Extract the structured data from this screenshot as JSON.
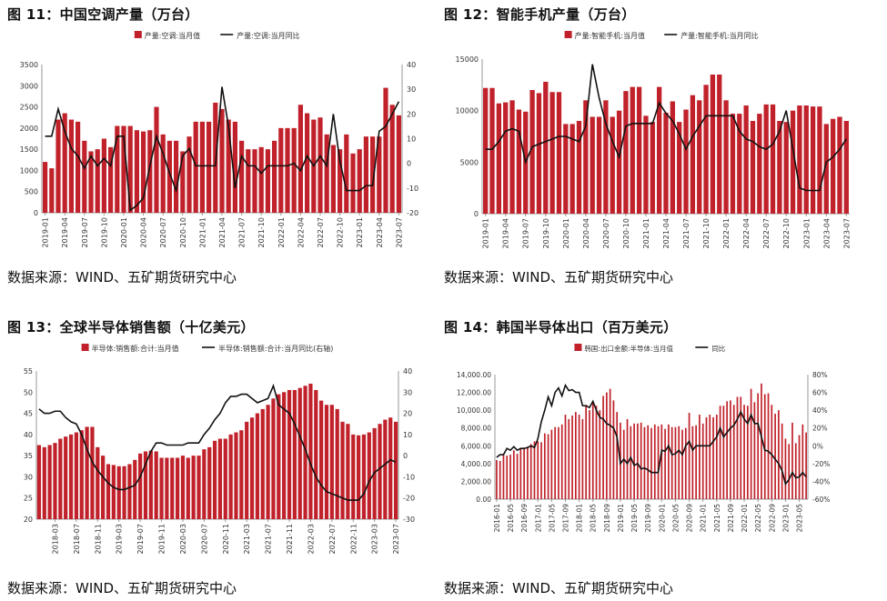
{
  "panels": [
    {
      "title": "图 11：中国空调产量（万台）",
      "source": "数据来源：WIND、五矿期货研究中心"
    },
    {
      "title": "图 12：智能手机产量（万台）",
      "source": "数据来源：WIND、五矿期货研究中心"
    },
    {
      "title": "图 13：全球半导体销售额（十亿美元）",
      "source": "数据来源：WIND、五矿期货研究中心"
    },
    {
      "title": "图 14：韩国半导体出口（百万美元）",
      "source": "数据来源：WIND、五矿期货研究中心"
    }
  ],
  "colors": {
    "bar": "#C0212A",
    "line": "#111111",
    "axis": "#999999"
  },
  "chart_data": [
    {
      "type": "bar",
      "title": "图 11：中国空调产量（万台）",
      "categories": [
        "2019-01",
        "2019-02",
        "2019-03",
        "2019-04",
        "2019-05",
        "2019-06",
        "2019-07",
        "2019-08",
        "2019-09",
        "2019-10",
        "2019-11",
        "2019-12",
        "2020-01",
        "2020-02",
        "2020-03",
        "2020-04",
        "2020-05",
        "2020-06",
        "2020-07",
        "2020-08",
        "2020-09",
        "2020-10",
        "2020-11",
        "2020-12",
        "2021-01",
        "2021-02",
        "2021-03",
        "2021-04",
        "2021-05",
        "2021-06",
        "2021-07",
        "2021-08",
        "2021-09",
        "2021-10",
        "2021-11",
        "2021-12",
        "2022-01",
        "2022-02",
        "2022-03",
        "2022-04",
        "2022-05",
        "2022-06",
        "2022-07",
        "2022-08",
        "2022-09",
        "2022-10",
        "2022-11",
        "2022-12",
        "2023-01",
        "2023-02",
        "2023-03",
        "2023-04",
        "2023-05",
        "2023-06",
        "2023-07"
      ],
      "xticks": [
        "2019-01",
        "2019-04",
        "2019-07",
        "2019-10",
        "2020-01",
        "2020-04",
        "2020-07",
        "2020-10",
        "2021-01",
        "2021-04",
        "2021-07",
        "2021-10",
        "2022-01",
        "2022-04",
        "2022-07",
        "2022-10",
        "2023-01",
        "2023-04",
        "2023-07"
      ],
      "series": [
        {
          "name": "产量:空调:当月值",
          "kind": "bar",
          "axis": "left",
          "values": [
            1200,
            1050,
            2200,
            2350,
            2200,
            2150,
            1700,
            1450,
            1500,
            1750,
            1550,
            2050,
            2050,
            2050,
            1950,
            1920,
            1950,
            2500,
            1850,
            1700,
            1700,
            1450,
            1800,
            2150,
            2150,
            2150,
            2600,
            2450,
            2200,
            2150,
            1700,
            1500,
            1500,
            1550,
            1500,
            1700,
            2000,
            2000,
            2000,
            2550,
            2350,
            2200,
            2250,
            1850,
            1600,
            1500,
            1850,
            1400,
            1500,
            1800,
            1800,
            1800,
            2950,
            2550,
            2300
          ]
        },
        {
          "name": "产量:空调:当月同比",
          "kind": "line",
          "axis": "right",
          "values": [
            11,
            11,
            22,
            13,
            6,
            3,
            -2,
            3,
            -1,
            2,
            -1,
            11,
            11,
            -19,
            -17,
            -14,
            -1,
            11,
            4,
            -4,
            -11,
            3,
            6,
            -1,
            -1,
            -1,
            -1,
            31,
            15,
            -10,
            3,
            -1,
            -1,
            -4,
            -1,
            -1,
            -1,
            -1,
            0,
            -3,
            3,
            -1,
            3,
            -1,
            20,
            1,
            -11,
            -11,
            -11,
            -9,
            -9,
            13,
            15,
            20,
            25
          ]
        }
      ],
      "ylim": [
        0,
        3500
      ],
      "yticks": [
        0,
        500,
        1000,
        1500,
        2000,
        2500,
        3000,
        3500
      ],
      "y2lim": [
        -20,
        40
      ],
      "y2ticks": [
        -20,
        -10,
        0,
        10,
        20,
        30,
        40
      ],
      "legend": "top"
    },
    {
      "type": "bar",
      "title": "图 12：智能手机产量（万台）",
      "categories": [
        "2019-01",
        "2019-02",
        "2019-03",
        "2019-04",
        "2019-05",
        "2019-06",
        "2019-07",
        "2019-08",
        "2019-09",
        "2019-10",
        "2019-11",
        "2019-12",
        "2020-01",
        "2020-02",
        "2020-03",
        "2020-04",
        "2020-05",
        "2020-06",
        "2020-07",
        "2020-08",
        "2020-09",
        "2020-10",
        "2020-11",
        "2020-12",
        "2021-01",
        "2021-02",
        "2021-03",
        "2021-04",
        "2021-05",
        "2021-06",
        "2021-07",
        "2021-08",
        "2021-09",
        "2021-10",
        "2021-11",
        "2021-12",
        "2022-01",
        "2022-02",
        "2022-03",
        "2022-04",
        "2022-05",
        "2022-06",
        "2022-07",
        "2022-08",
        "2022-09",
        "2022-10",
        "2022-11",
        "2022-12",
        "2023-01",
        "2023-02",
        "2023-03",
        "2023-04",
        "2023-05",
        "2023-06",
        "2023-07"
      ],
      "xticks": [
        "2019-01",
        "2019-04",
        "2019-07",
        "2019-10",
        "2020-01",
        "2020-04",
        "2020-07",
        "2020-10",
        "2021-01",
        "2021-04",
        "2021-07",
        "2021-10",
        "2022-01",
        "2022-04",
        "2022-07",
        "2022-10",
        "2023-01",
        "2023-04",
        "2023-07"
      ],
      "series": [
        {
          "name": "产量:智能手机:当月值",
          "kind": "bar",
          "axis": "left",
          "values": [
            12200,
            12200,
            10700,
            10800,
            11000,
            10100,
            9900,
            12000,
            11700,
            12800,
            11800,
            11800,
            8700,
            8700,
            9000,
            11000,
            9400,
            9400,
            11000,
            9400,
            10000,
            11900,
            12300,
            12300,
            9500,
            8900,
            12300,
            9800,
            10900,
            8900,
            10100,
            11500,
            11000,
            12500,
            13500,
            13500,
            11000,
            9700,
            9700,
            10500,
            9000,
            9700,
            10600,
            10600,
            9000,
            8900,
            10000,
            10500,
            10500,
            10400,
            10400,
            8700,
            9200,
            9400,
            9000
          ]
        },
        {
          "name": "产量:智能手机:当月同比",
          "kind": "line",
          "axis": "right",
          "values": [
            -5,
            -5,
            -2,
            2,
            3,
            2,
            -10,
            -4,
            -3,
            -2,
            -1,
            0,
            0,
            -1,
            -2,
            4,
            28,
            15,
            5,
            -2,
            -8,
            4,
            5,
            5,
            5,
            5,
            13,
            9,
            6,
            1,
            -5,
            0,
            4,
            8,
            8,
            8,
            8,
            8,
            2,
            -1,
            -2,
            -4,
            -5,
            -3,
            2,
            10,
            -5,
            -20,
            -21,
            -21,
            -21,
            -10,
            -8,
            -5,
            -1
          ]
        }
      ],
      "ylim": [
        0,
        15000
      ],
      "yticks": [
        0,
        5000,
        10000,
        15000
      ],
      "legend": "top"
    },
    {
      "type": "bar",
      "title": "图 13：全球半导体销售额（十亿美元）",
      "categories": [
        "2017-12",
        "2018-01",
        "2018-02",
        "2018-03",
        "2018-04",
        "2018-05",
        "2018-06",
        "2018-07",
        "2018-08",
        "2018-09",
        "2018-10",
        "2018-11",
        "2018-12",
        "2019-01",
        "2019-02",
        "2019-03",
        "2019-04",
        "2019-05",
        "2019-06",
        "2019-07",
        "2019-08",
        "2019-09",
        "2019-10",
        "2019-11",
        "2019-12",
        "2020-01",
        "2020-02",
        "2020-03",
        "2020-04",
        "2020-05",
        "2020-06",
        "2020-07",
        "2020-08",
        "2020-09",
        "2020-10",
        "2020-11",
        "2020-12",
        "2021-01",
        "2021-02",
        "2021-03",
        "2021-04",
        "2021-05",
        "2021-06",
        "2021-07",
        "2021-08",
        "2021-09",
        "2021-10",
        "2021-11",
        "2021-12",
        "2022-01",
        "2022-02",
        "2022-03",
        "2022-04",
        "2022-05",
        "2022-06",
        "2022-07",
        "2022-08",
        "2022-09",
        "2022-10",
        "2022-11",
        "2022-12",
        "2023-01",
        "2023-02",
        "2023-03",
        "2023-04",
        "2023-05",
        "2023-06",
        "2023-07"
      ],
      "xticks": [
        "2018-03",
        "2018-07",
        "2018-11",
        "2019-03",
        "2019-07",
        "2019-11",
        "2020-03",
        "2020-07",
        "2020-11",
        "2021-03",
        "2021-07",
        "2021-11",
        "2022-03",
        "2022-07",
        "2022-11",
        "2023-03",
        "2023-07"
      ],
      "series": [
        {
          "name": "半导体:销售额:合计:当月值",
          "kind": "bar",
          "axis": "left",
          "values": [
            37.5,
            37,
            37.5,
            38,
            39,
            39.5,
            40,
            40.5,
            41,
            41.8,
            41.8,
            37,
            35,
            33,
            32.8,
            32.5,
            32.5,
            33,
            34,
            35.5,
            36,
            36.2,
            36,
            34.5,
            34.5,
            34.5,
            34.5,
            35,
            34.5,
            35,
            35,
            36.5,
            37,
            38.5,
            39,
            39,
            40,
            40.5,
            41,
            43,
            44,
            45,
            46,
            47,
            48.5,
            49.5,
            50,
            50.5,
            50.5,
            51,
            51.5,
            52,
            50.5,
            48,
            47,
            47,
            46,
            43,
            42.5,
            40,
            39.8,
            40,
            40.5,
            41.5,
            42.5,
            43.5,
            44,
            43
          ]
        },
        {
          "name": "半导体:销售额:合计:当月同比(右轴)",
          "kind": "line",
          "axis": "right",
          "values": [
            22,
            20,
            20,
            21,
            21,
            18,
            16,
            15,
            10,
            3,
            -3,
            -7,
            -10,
            -13,
            -15,
            -16,
            -16,
            -15,
            -14,
            -10,
            -4,
            2,
            6,
            6,
            5,
            5,
            5,
            5,
            6,
            6,
            6,
            10,
            13,
            17,
            20,
            25,
            28,
            28,
            29,
            29,
            27,
            25,
            26,
            27,
            33,
            24,
            22,
            20,
            15,
            9,
            3,
            -4,
            -10,
            -14,
            -17,
            -18,
            -19,
            -20,
            -21,
            -21,
            -21,
            -18,
            -12,
            -8,
            -6,
            -4,
            -2,
            -3
          ]
        }
      ],
      "ylim": [
        20,
        55
      ],
      "yticks": [
        20,
        25,
        30,
        35,
        40,
        45,
        50,
        55
      ],
      "y2lim": [
        -30,
        40
      ],
      "y2ticks": [
        -30,
        -20,
        -10,
        0,
        10,
        20,
        30,
        40
      ],
      "legend": "top"
    },
    {
      "type": "bar",
      "title": "图 14：韩国半导体出口（百万美元）",
      "categories": [
        "2016-01",
        "2016-02",
        "2016-03",
        "2016-04",
        "2016-05",
        "2016-06",
        "2016-07",
        "2016-08",
        "2016-09",
        "2016-10",
        "2016-11",
        "2016-12",
        "2017-01",
        "2017-02",
        "2017-03",
        "2017-04",
        "2017-05",
        "2017-06",
        "2017-07",
        "2017-08",
        "2017-09",
        "2017-10",
        "2017-11",
        "2017-12",
        "2018-01",
        "2018-02",
        "2018-03",
        "2018-04",
        "2018-05",
        "2018-06",
        "2018-07",
        "2018-08",
        "2018-09",
        "2018-10",
        "2018-11",
        "2018-12",
        "2019-01",
        "2019-02",
        "2019-03",
        "2019-04",
        "2019-05",
        "2019-06",
        "2019-07",
        "2019-08",
        "2019-09",
        "2019-10",
        "2019-11",
        "2019-12",
        "2020-01",
        "2020-02",
        "2020-03",
        "2020-04",
        "2020-05",
        "2020-06",
        "2020-07",
        "2020-08",
        "2020-09",
        "2020-10",
        "2020-11",
        "2020-12",
        "2021-01",
        "2021-02",
        "2021-03",
        "2021-04",
        "2021-05",
        "2021-06",
        "2021-07",
        "2021-08",
        "2021-09",
        "2021-10",
        "2021-11",
        "2021-12",
        "2022-01",
        "2022-02",
        "2022-03",
        "2022-04",
        "2022-05",
        "2022-06",
        "2022-07",
        "2022-08",
        "2022-09",
        "2022-10",
        "2022-11",
        "2022-12",
        "2023-01",
        "2023-02",
        "2023-03",
        "2023-04",
        "2023-05",
        "2023-06",
        "2023-07"
      ],
      "xticks": [
        "2016-01",
        "2016-05",
        "2016-09",
        "2017-01",
        "2017-05",
        "2017-09",
        "2018-01",
        "2018-05",
        "2018-09",
        "2019-01",
        "2019-05",
        "2019-09",
        "2020-01",
        "2020-05",
        "2020-09",
        "2021-01",
        "2021-05",
        "2021-09",
        "2022-01",
        "2022-05",
        "2022-09",
        "2023-01",
        "2023-05"
      ],
      "series": [
        {
          "name": "韩国:出口金额:半导体:当月值",
          "kind": "bar",
          "axis": "left",
          "values": [
            4400,
            4300,
            5000,
            4900,
            5000,
            5500,
            5100,
            5700,
            5800,
            5900,
            6200,
            6500,
            6500,
            6400,
            7400,
            7300,
            7800,
            8100,
            8100,
            8400,
            9500,
            9000,
            9400,
            9800,
            9500,
            9000,
            10600,
            10000,
            10800,
            10500,
            10000,
            11600,
            12000,
            12400,
            11100,
            9800,
            8600,
            7800,
            9000,
            8200,
            8500,
            8500,
            8600,
            8100,
            8300,
            8000,
            8400,
            8200,
            8400,
            7900,
            8400,
            8100,
            8100,
            8200,
            7800,
            8000,
            9700,
            8200,
            8300,
            9500,
            8500,
            9200,
            9500,
            9200,
            9500,
            10500,
            10500,
            11000,
            11100,
            10600,
            11500,
            11500,
            10600,
            10500,
            12400,
            10900,
            11900,
            13000,
            11800,
            11900,
            10600,
            9600,
            10000,
            8500,
            6800,
            6200,
            8600,
            6300,
            7200,
            8400,
            7500
          ]
        },
        {
          "name": "同比",
          "kind": "line",
          "axis": "right",
          "values": [
            -13,
            -10,
            -10,
            -3,
            -5,
            -1,
            -5,
            -3,
            -3,
            -2,
            0,
            -2,
            8,
            27,
            40,
            55,
            45,
            60,
            65,
            56,
            68,
            62,
            63,
            60,
            60,
            45,
            45,
            43,
            50,
            40,
            32,
            30,
            25,
            23,
            20,
            10,
            -20,
            -15,
            -20,
            -13,
            -22,
            -20,
            -26,
            -25,
            -27,
            -30,
            -30,
            -30,
            -5,
            -6,
            0,
            -10,
            -9,
            -5,
            -10,
            0,
            5,
            -5,
            0,
            0,
            0,
            0,
            0,
            5,
            10,
            20,
            10,
            15,
            20,
            23,
            30,
            38,
            30,
            25,
            35,
            25,
            25,
            10,
            -5,
            -6,
            -10,
            -15,
            -20,
            -28,
            -43,
            -38,
            -30,
            -36,
            -35,
            -30,
            -35
          ]
        }
      ],
      "ylim": [
        0,
        14000
      ],
      "yticks": [
        0,
        2000,
        4000,
        6000,
        8000,
        10000,
        12000,
        14000
      ],
      "ytick_labels": [
        "0.00",
        "2,000.00",
        "4,000.00",
        "6,000.00",
        "8,000.00",
        "10,000.00",
        "12,000.00",
        "14,000.00"
      ],
      "y2lim": [
        -60,
        80
      ],
      "y2ticks": [
        -60,
        -40,
        -20,
        0,
        20,
        40,
        60,
        80
      ],
      "y2tick_labels": [
        "-60%",
        "-40%",
        "-20%",
        "0%",
        "20%",
        "40%",
        "60%",
        "80%"
      ],
      "legend": "top"
    }
  ]
}
